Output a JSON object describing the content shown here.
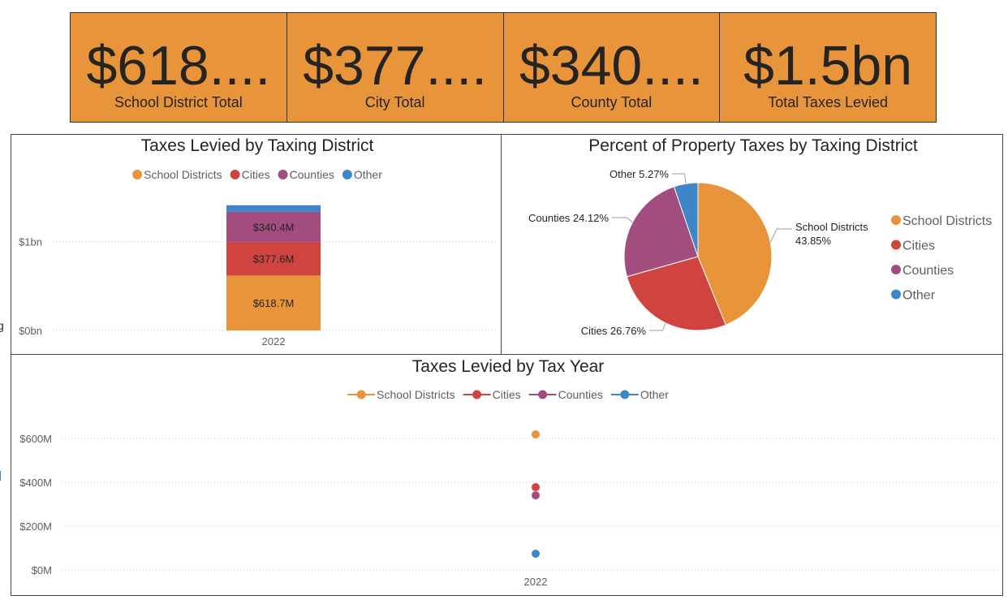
{
  "kpis": [
    {
      "value": "$618....",
      "label": "School District Total"
    },
    {
      "value": "$377....",
      "label": "City Total"
    },
    {
      "value": "$340....",
      "label": "County Total"
    },
    {
      "value": "$1.5bn",
      "label": "Total Taxes Levied"
    }
  ],
  "colors": {
    "school": "#E8943A",
    "cities": "#D0443F",
    "counties": "#A24D7E",
    "other": "#3F86C8"
  },
  "chart_data": [
    {
      "type": "bar",
      "stacked": true,
      "title": "Taxes Levied by Taxing District",
      "legend": "top-center",
      "categories": [
        "2022"
      ],
      "series": [
        {
          "name": "School Districts",
          "values": [
            618.7
          ],
          "label": "$618.7M",
          "color": "#E8943A"
        },
        {
          "name": "Cities",
          "values": [
            377.6
          ],
          "label": "$377.6M",
          "color": "#D0443F"
        },
        {
          "name": "Counties",
          "values": [
            340.4
          ],
          "label": "$340.4M",
          "color": "#A24D7E"
        },
        {
          "name": "Other",
          "values": [
            74.3
          ],
          "label": "",
          "color": "#3F86C8"
        }
      ],
      "yticks": [
        {
          "v": 0,
          "label": "$0bn"
        },
        {
          "v": 1000,
          "label": "$1bn"
        }
      ],
      "ylim": [
        0,
        1410
      ],
      "grid": true
    },
    {
      "type": "pie",
      "title": "Percent of Property Taxes by Taxing District",
      "legend": "right",
      "slices": [
        {
          "name": "School Districts",
          "value": 43.85,
          "label": "School Districts",
          "pct": "43.85%",
          "color": "#E8943A"
        },
        {
          "name": "Cities",
          "value": 26.76,
          "label": "Cities 26.76%",
          "color": "#D0443F"
        },
        {
          "name": "Counties",
          "value": 24.12,
          "label": "Counties 24.12%",
          "color": "#A24D7E"
        },
        {
          "name": "Other",
          "value": 5.27,
          "label": "Other 5.27%",
          "color": "#3F86C8"
        }
      ]
    },
    {
      "type": "line",
      "title": "Taxes Levied by Tax Year",
      "legend": "top-center",
      "x": [
        "2022"
      ],
      "series": [
        {
          "name": "School Districts",
          "values": [
            618.7
          ],
          "color": "#E8943A"
        },
        {
          "name": "Cities",
          "values": [
            377.6
          ],
          "color": "#D0443F"
        },
        {
          "name": "Counties",
          "values": [
            340.4
          ],
          "color": "#A24D7E"
        },
        {
          "name": "Other",
          "values": [
            74.3
          ],
          "color": "#3F86C8"
        }
      ],
      "yticks": [
        {
          "v": 0,
          "label": "$0M"
        },
        {
          "v": 200,
          "label": "$200M"
        },
        {
          "v": 400,
          "label": "$400M"
        },
        {
          "v": 600,
          "label": "$600M"
        }
      ],
      "ylim": [
        0,
        850
      ],
      "grid": true
    }
  ]
}
